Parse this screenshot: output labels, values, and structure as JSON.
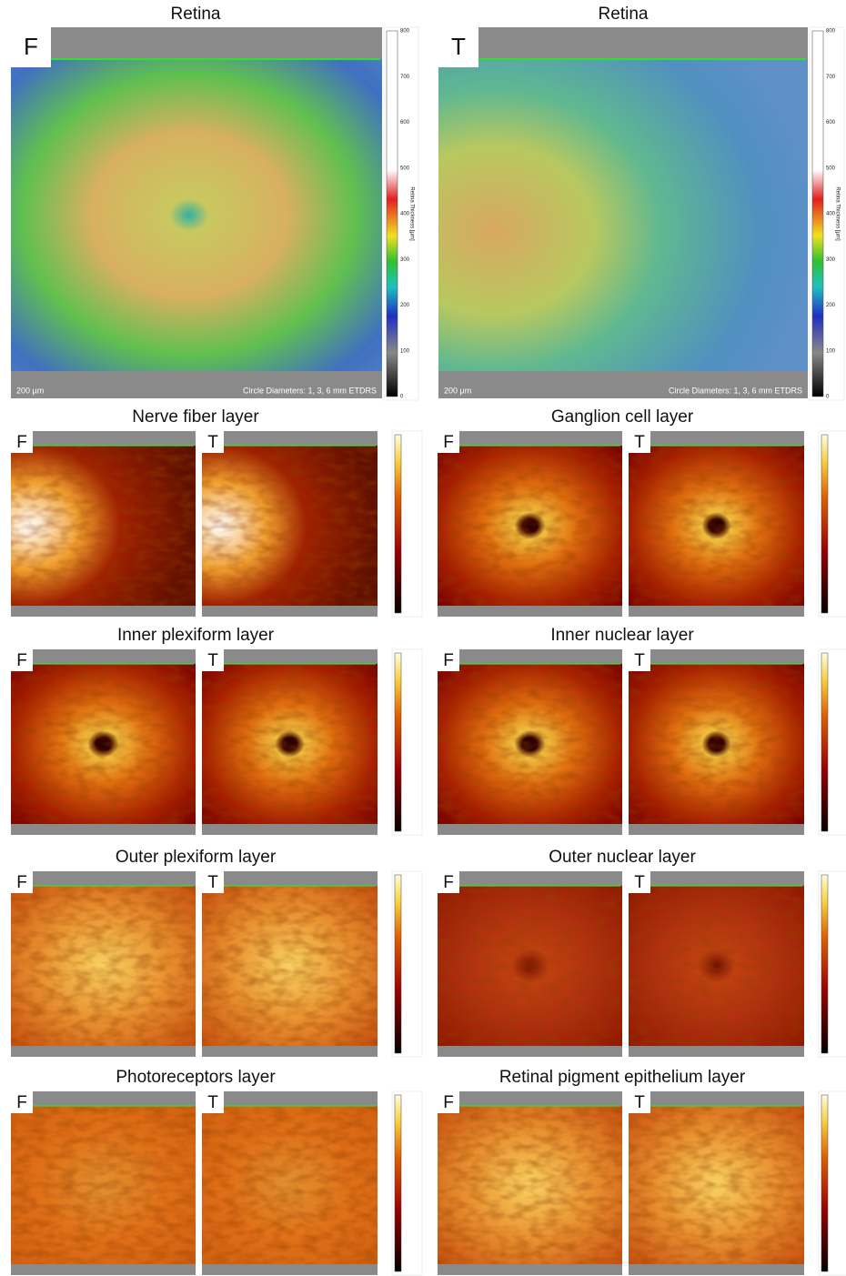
{
  "panels": [
    {
      "title": "Retina",
      "images": [
        {
          "label": "F",
          "scale": "200 µm",
          "caption": "Circle Diameters: 1, 3, 6 mm ETDRS"
        }
      ],
      "colorbar": {
        "label": "Retina Thickness [µm]",
        "ticks": [
          800,
          700,
          600,
          500,
          400,
          300,
          200,
          100,
          0
        ]
      }
    },
    {
      "title": "Retina",
      "images": [
        {
          "label": "T",
          "scale": "200 µm",
          "caption": "Circle Diameters: 1, 3, 6 mm ETDRS"
        }
      ],
      "colorbar": {
        "label": "Retina Thickness [µm]",
        "ticks": [
          800,
          700,
          600,
          500,
          400,
          300,
          200,
          100,
          0
        ]
      }
    },
    {
      "title": "Nerve fiber layer",
      "images": [
        {
          "label": "F"
        },
        {
          "label": "T"
        }
      ]
    },
    {
      "title": "Ganglion cell layer",
      "images": [
        {
          "label": "F"
        },
        {
          "label": "T"
        }
      ]
    },
    {
      "title": "Inner plexiform layer",
      "images": [
        {
          "label": "F"
        },
        {
          "label": "T"
        }
      ]
    },
    {
      "title": "Inner nuclear layer",
      "images": [
        {
          "label": "F"
        },
        {
          "label": "T"
        }
      ]
    },
    {
      "title": "Outer plexiform layer",
      "images": [
        {
          "label": "F"
        },
        {
          "label": "T"
        }
      ]
    },
    {
      "title": "Outer nuclear layer",
      "images": [
        {
          "label": "F"
        },
        {
          "label": "T"
        }
      ]
    },
    {
      "title": "Photoreceptors layer",
      "images": [
        {
          "label": "F"
        },
        {
          "label": "T"
        }
      ]
    },
    {
      "title": "Retinal pigment epithelium layer",
      "images": [
        {
          "label": "F"
        },
        {
          "label": "T"
        }
      ]
    }
  ]
}
